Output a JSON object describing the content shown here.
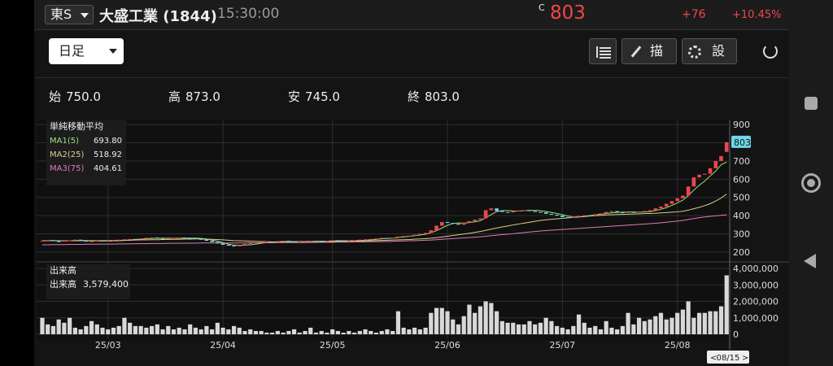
{
  "header": {
    "market": "東S",
    "name": "大盛工業 (1844)",
    "time": "15:30:00",
    "price_flag": "C",
    "price": "803",
    "change": "+76",
    "change_pct": "+10.45%"
  },
  "toolbar": {
    "period": "日足",
    "draw": "描画",
    "settings": "設定"
  },
  "ohlc": [
    {
      "label": "始",
      "value": "750.0"
    },
    {
      "label": "高",
      "value": "873.0"
    },
    {
      "label": "安",
      "value": "745.0"
    },
    {
      "label": "終",
      "value": "803.0"
    }
  ],
  "legend": {
    "title": "単純移動平均"
  },
  "volume_legend": {
    "title": "出来高",
    "label": "出来高",
    "value": "3,579,400"
  },
  "cursor_date": "08/15",
  "chart_data": [
    {
      "type": "candlestick",
      "up_color": "#f0454b",
      "down_color": "#6fd6e8",
      "ylim": [
        164,
        923
      ],
      "yticks": [
        200,
        300,
        400,
        500,
        600,
        700,
        800,
        900
      ],
      "grid": true,
      "open": [
        260,
        262,
        266,
        260,
        258,
        262,
        265,
        268,
        262,
        258,
        260,
        263,
        260,
        262,
        265,
        268,
        270,
        272,
        270,
        275,
        278,
        280,
        276,
        272,
        275,
        278,
        280,
        278,
        275,
        272,
        270,
        262,
        255,
        248,
        240,
        235,
        232,
        238,
        245,
        248,
        252,
        255,
        258,
        256,
        260,
        262,
        258,
        255,
        258,
        260,
        262,
        260,
        258,
        262,
        265,
        263,
        260,
        262,
        265,
        268,
        270,
        272,
        275,
        278,
        276,
        280,
        285,
        288,
        290,
        295,
        300,
        305,
        320,
        345,
        365,
        360,
        355,
        350,
        362,
        370,
        378,
        385,
        430,
        440,
        425,
        420,
        418,
        425,
        428,
        430,
        425,
        420,
        418,
        410,
        405,
        400,
        392,
        388,
        395,
        398,
        402,
        400,
        408,
        412,
        420,
        425,
        418,
        415,
        420,
        418,
        422,
        425,
        430,
        440,
        450,
        465,
        480,
        495,
        510,
        560,
        610,
        625,
        630,
        660,
        700,
        750
      ],
      "close": [
        262,
        266,
        260,
        258,
        262,
        265,
        268,
        262,
        258,
        260,
        263,
        260,
        262,
        265,
        268,
        270,
        272,
        270,
        275,
        278,
        280,
        276,
        272,
        275,
        278,
        280,
        278,
        275,
        272,
        270,
        262,
        255,
        248,
        240,
        235,
        232,
        238,
        245,
        248,
        252,
        255,
        258,
        256,
        260,
        262,
        258,
        255,
        258,
        260,
        262,
        260,
        258,
        262,
        265,
        263,
        260,
        262,
        265,
        268,
        270,
        272,
        275,
        278,
        276,
        280,
        285,
        288,
        290,
        295,
        300,
        305,
        320,
        345,
        365,
        360,
        355,
        350,
        362,
        370,
        378,
        385,
        430,
        440,
        425,
        420,
        418,
        425,
        428,
        430,
        425,
        420,
        418,
        410,
        405,
        400,
        392,
        388,
        395,
        398,
        402,
        400,
        408,
        412,
        420,
        425,
        418,
        415,
        420,
        418,
        422,
        425,
        430,
        440,
        450,
        465,
        480,
        495,
        510,
        560,
        610,
        625,
        630,
        660,
        700,
        727,
        803
      ],
      "series": [
        {
          "name": "MA1(5)",
          "color": "#9be07a",
          "last_label": "693.80",
          "values": [
            262,
            263,
            263,
            262,
            262,
            262,
            263,
            264,
            263,
            262,
            261,
            261,
            260,
            261,
            262,
            264,
            266,
            269,
            271,
            273,
            275,
            276,
            276,
            276,
            276,
            276,
            277,
            277,
            277,
            275,
            272,
            266,
            260,
            252,
            244,
            238,
            237,
            238,
            240,
            244,
            248,
            252,
            255,
            257,
            258,
            259,
            258,
            258,
            259,
            259,
            259,
            260,
            260,
            261,
            262,
            262,
            262,
            263,
            264,
            265,
            267,
            270,
            273,
            275,
            277,
            280,
            283,
            286,
            290,
            294,
            298,
            306,
            318,
            332,
            347,
            357,
            360,
            359,
            362,
            366,
            372,
            389,
            406,
            422,
            428,
            428,
            426,
            425,
            427,
            429,
            429,
            427,
            423,
            418,
            412,
            405,
            398,
            393,
            393,
            395,
            400,
            404,
            408,
            412,
            415,
            418,
            419,
            420,
            420,
            419,
            420,
            422,
            428,
            435,
            444,
            456,
            470,
            485,
            510,
            540,
            567,
            590,
            618,
            645,
            680,
            693.8
          ]
        },
        {
          "name": "MA2(25)",
          "color": "#d9d08a",
          "last_label": "518.92",
          "values": [
            262,
            262,
            262,
            262,
            262,
            262,
            262,
            263,
            263,
            263,
            263,
            263,
            263,
            264,
            264,
            265,
            265,
            266,
            267,
            267,
            268,
            268,
            269,
            269,
            270,
            270,
            271,
            271,
            272,
            272,
            271,
            270,
            269,
            267,
            265,
            263,
            262,
            261,
            260,
            259,
            258,
            257,
            256,
            255,
            254,
            254,
            254,
            253,
            253,
            254,
            254,
            255,
            256,
            257,
            258,
            258,
            259,
            259,
            260,
            261,
            262,
            263,
            264,
            265,
            266,
            267,
            268,
            269,
            271,
            272,
            274,
            276,
            279,
            283,
            287,
            291,
            295,
            299,
            303,
            308,
            313,
            319,
            326,
            332,
            338,
            343,
            349,
            354,
            359,
            364,
            369,
            374,
            377,
            380,
            383,
            385,
            388,
            390,
            393,
            395,
            398,
            400,
            402,
            404,
            405,
            406,
            407,
            408,
            409,
            410,
            411,
            412,
            413,
            415,
            417,
            419,
            421,
            424,
            430,
            438,
            446,
            455,
            466,
            480,
            497,
            518.92
          ]
        },
        {
          "name": "MA3(75)",
          "color": "#e07ab8",
          "last_label": "404.61",
          "values": [
            240,
            240,
            241,
            241,
            241,
            242,
            242,
            242,
            243,
            243,
            243,
            244,
            244,
            244,
            245,
            245,
            245,
            246,
            246,
            246,
            247,
            247,
            247,
            248,
            248,
            248,
            249,
            249,
            249,
            250,
            250,
            250,
            250,
            250,
            250,
            250,
            250,
            250,
            251,
            251,
            251,
            251,
            251,
            252,
            252,
            252,
            252,
            253,
            253,
            253,
            253,
            254,
            254,
            254,
            255,
            255,
            255,
            256,
            256,
            256,
            257,
            257,
            258,
            258,
            259,
            260,
            261,
            262,
            263,
            264,
            265,
            266,
            268,
            270,
            272,
            274,
            276,
            278,
            280,
            282,
            284,
            287,
            290,
            293,
            296,
            298,
            301,
            304,
            307,
            310,
            313,
            316,
            318,
            320,
            322,
            324,
            326,
            328,
            330,
            332,
            334,
            336,
            338,
            340,
            342,
            344,
            346,
            348,
            350,
            352,
            354,
            356,
            358,
            361,
            364,
            367,
            370,
            374,
            379,
            384,
            389,
            393,
            396,
            399,
            402,
            404.61
          ]
        }
      ]
    },
    {
      "type": "bar",
      "color": "#d8d8d8",
      "ylim": [
        0,
        4200000
      ],
      "yticks": [
        0,
        {
          "value": 1000000,
          "label": "1,000,000"
        },
        {
          "value": 2000000,
          "label": "2,000,000"
        },
        {
          "value": 3000000,
          "label": "3,000,000"
        },
        {
          "value": 4000000,
          "label": "4,000,000"
        }
      ],
      "xticks": [
        {
          "value": 12,
          "label": "25/03"
        },
        {
          "value": 33,
          "label": "25/04"
        },
        {
          "value": 53,
          "label": "25/05"
        },
        {
          "value": 74,
          "label": "25/06"
        },
        {
          "value": 95,
          "label": "25/07"
        },
        {
          "value": 116,
          "label": "25/08"
        }
      ],
      "values": [
        1000000,
        600000,
        500000,
        900000,
        700000,
        1000000,
        400000,
        300000,
        500000,
        800000,
        600000,
        400000,
        300000,
        400000,
        500000,
        1000000,
        700000,
        500000,
        500000,
        400000,
        500000,
        600000,
        300000,
        500000,
        300000,
        400000,
        300000,
        600000,
        400000,
        300000,
        500000,
        300000,
        700000,
        400000,
        300000,
        500000,
        400000,
        200000,
        300000,
        200000,
        200000,
        100000,
        100000,
        200000,
        100000,
        200000,
        300000,
        100000,
        200000,
        400000,
        100000,
        200000,
        100000,
        300000,
        200000,
        100000,
        200000,
        100000,
        200000,
        300000,
        200000,
        100000,
        200000,
        300000,
        200000,
        1400000,
        400000,
        300000,
        400000,
        300000,
        400000,
        1300000,
        1600000,
        1600000,
        1400000,
        900000,
        600000,
        1100000,
        1800000,
        1300000,
        1700000,
        2000000,
        1900000,
        1400000,
        800000,
        700000,
        700000,
        600000,
        600000,
        800000,
        600000,
        700000,
        1000000,
        800000,
        500000,
        400000,
        300000,
        500000,
        1200000,
        700000,
        400000,
        500000,
        300000,
        800000,
        400000,
        300000,
        500000,
        1300000,
        600000,
        1000000,
        800000,
        900000,
        1100000,
        1300000,
        900000,
        1000000,
        1300000,
        1500000,
        2000000,
        1000000,
        1300000,
        1300000,
        1400000,
        1400000,
        1700000,
        3579400
      ]
    }
  ]
}
